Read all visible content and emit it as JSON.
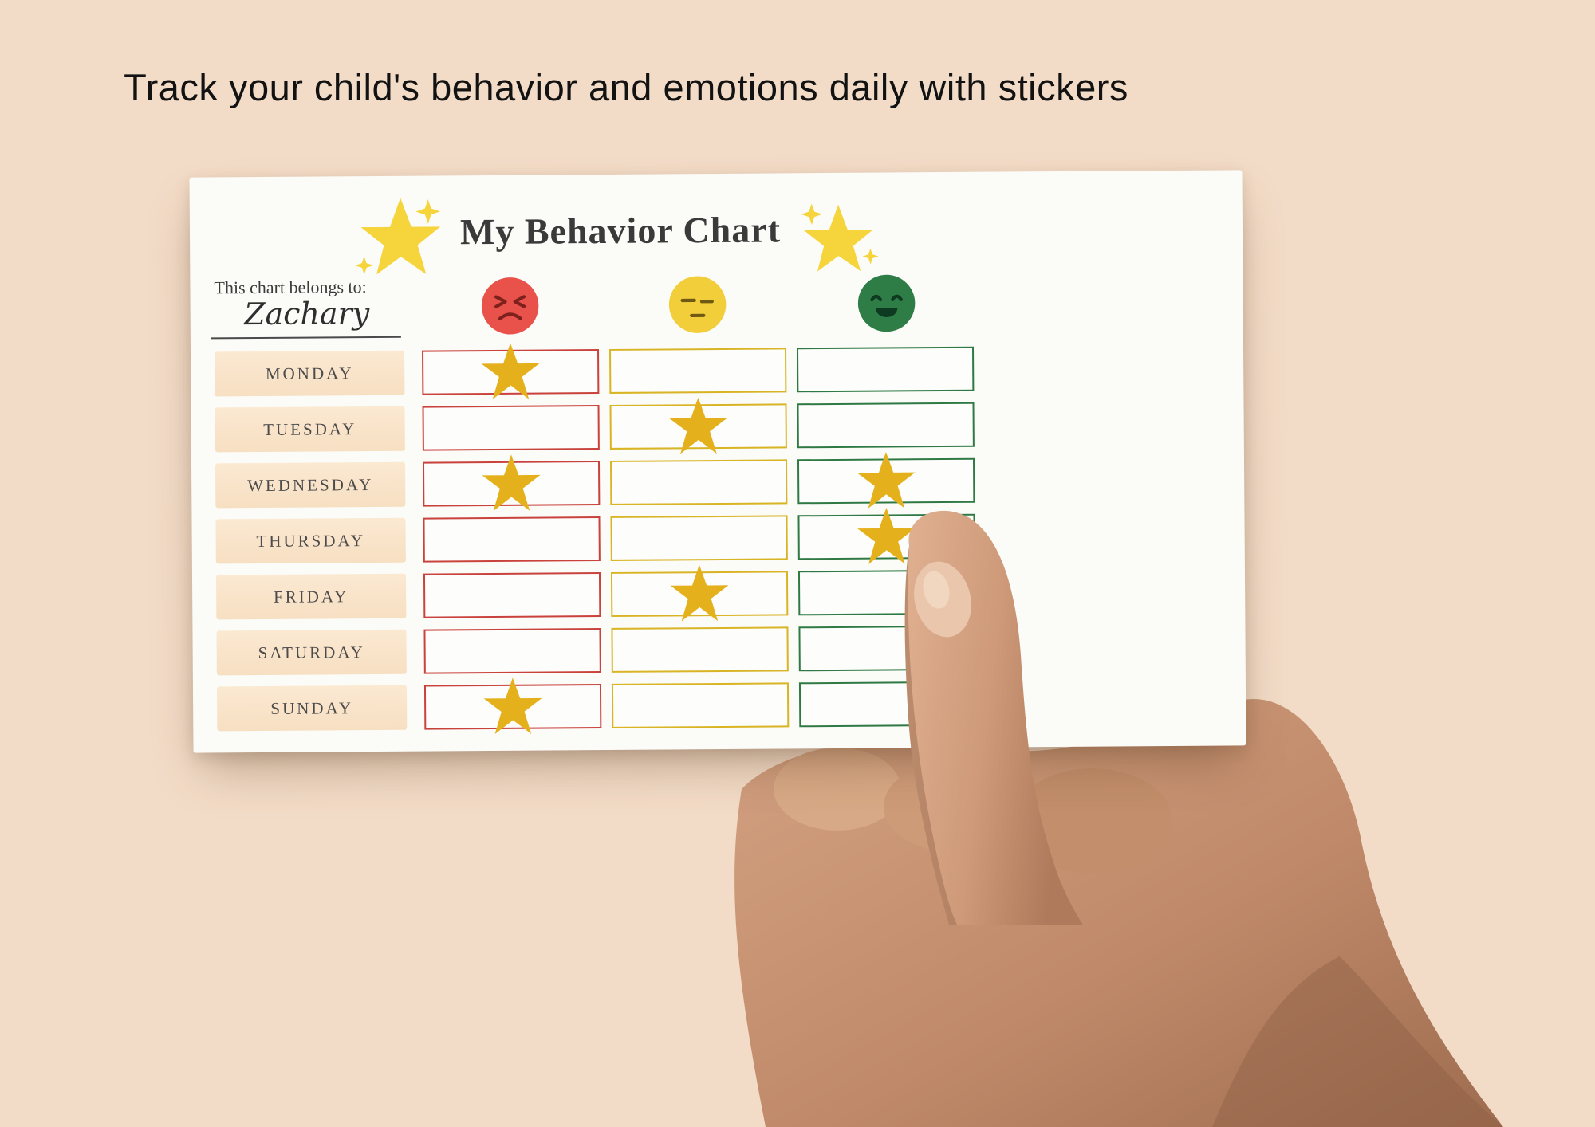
{
  "headline": "Track your child's behavior and emotions daily with stickers",
  "background_color": "#F3DCC7",
  "card": {
    "title": "My Behavior Chart",
    "belongs_label": "This chart belongs to:",
    "child_name": "Zachary",
    "decor_icons": [
      "sparkle-star-icon-left",
      "sparkle-star-icon-right"
    ],
    "columns": [
      {
        "id": "red",
        "emotion": "angry-face",
        "color": "#E8524A",
        "border_color": "#C9423C"
      },
      {
        "id": "yellow",
        "emotion": "neutral-face",
        "color": "#F2CE3B",
        "border_color": "#D9B424"
      },
      {
        "id": "green",
        "emotion": "happy-face",
        "color": "#2E7D46",
        "border_color": "#2F7A44"
      }
    ],
    "rows": [
      {
        "day": "MONDAY",
        "stars": [
          "red"
        ]
      },
      {
        "day": "TUESDAY",
        "stars": [
          "yellow"
        ]
      },
      {
        "day": "WEDNESDAY",
        "stars": [
          "red",
          "green"
        ]
      },
      {
        "day": "THURSDAY",
        "stars": [
          "green"
        ]
      },
      {
        "day": "FRIDAY",
        "stars": [
          "yellow"
        ]
      },
      {
        "day": "SATURDAY",
        "stars": []
      },
      {
        "day": "SUNDAY",
        "stars": [
          "red"
        ]
      }
    ],
    "sticker": {
      "name": "gold-star-sticker",
      "color": "#E4B11D"
    },
    "day_box_color": "#F9E4CB"
  }
}
